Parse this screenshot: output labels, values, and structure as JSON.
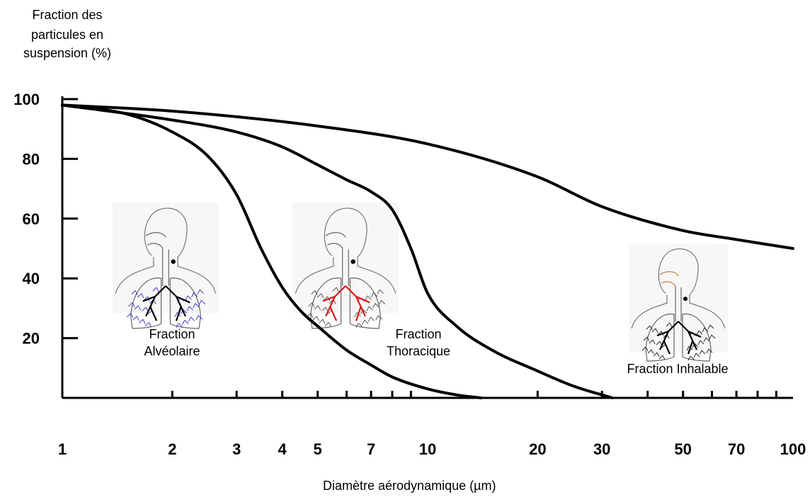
{
  "chart_data": {
    "type": "line",
    "ylabel_lines": [
      "Fraction des",
      "particules en",
      "suspension (%)"
    ],
    "xlabel": "Diamètre aérodynamique (µm)",
    "xscale": "log",
    "xlim": [
      1,
      100
    ],
    "ylim": [
      0,
      100
    ],
    "y_ticks": [
      20,
      40,
      60,
      80,
      100
    ],
    "y_tick_labels": [
      "20",
      "40",
      "60",
      "80",
      "100"
    ],
    "x_tick_labels": [
      {
        "value": 1,
        "label": "1"
      },
      {
        "value": 2,
        "label": "2"
      },
      {
        "value": 3,
        "label": "3"
      },
      {
        "value": 4,
        "label": "4"
      },
      {
        "value": 5,
        "label": "5"
      },
      {
        "value": 7,
        "label": "7"
      },
      {
        "value": 10,
        "label": "10"
      },
      {
        "value": 20,
        "label": "20"
      },
      {
        "value": 30,
        "label": "30"
      },
      {
        "value": 50,
        "label": "50"
      },
      {
        "value": 70,
        "label": "70"
      },
      {
        "value": 100,
        "label": "100"
      }
    ],
    "x_minor_ticks": [
      2,
      3,
      4,
      5,
      6,
      7,
      8,
      9,
      20,
      30,
      40,
      50,
      60,
      70,
      80,
      90
    ],
    "series": [
      {
        "name": "Fraction Inhalable",
        "x": [
          1,
          2,
          5,
          10,
          20,
          30,
          50,
          70,
          100
        ],
        "y": [
          98,
          96,
          91,
          85,
          74,
          64,
          56,
          53,
          50
        ]
      },
      {
        "name": "Fraction Thoracique",
        "x": [
          1,
          2,
          3,
          4,
          5,
          6,
          7,
          8,
          9,
          10,
          12,
          15,
          20,
          25,
          32
        ],
        "y": [
          98,
          93,
          89,
          84,
          78,
          73,
          69,
          63,
          50,
          35,
          24,
          16,
          9,
          4,
          0
        ]
      },
      {
        "name": "Fraction Alvéolaire",
        "x": [
          1,
          1.5,
          2,
          2.5,
          3,
          3.5,
          4,
          4.5,
          5,
          6,
          7,
          8,
          10,
          12,
          14
        ],
        "y": [
          98,
          95,
          89,
          81,
          68,
          50,
          37,
          29,
          24,
          16,
          11,
          7,
          3,
          1,
          0
        ]
      }
    ],
    "annotations": [
      {
        "name": "alveolaire-label",
        "lines": [
          "Fraction",
          "Alvéolaire"
        ]
      },
      {
        "name": "thoracique-label",
        "lines": [
          "Fraction",
          "Thoracique"
        ]
      },
      {
        "name": "inhalable-label",
        "lines": [
          "Fraction Inhalable"
        ]
      }
    ],
    "colors": {
      "line": "#000000",
      "alveolar": "#2b2bbf",
      "bronchi": "#e01818",
      "outline": "#555555",
      "inhalable_tract": "#c08040"
    }
  }
}
